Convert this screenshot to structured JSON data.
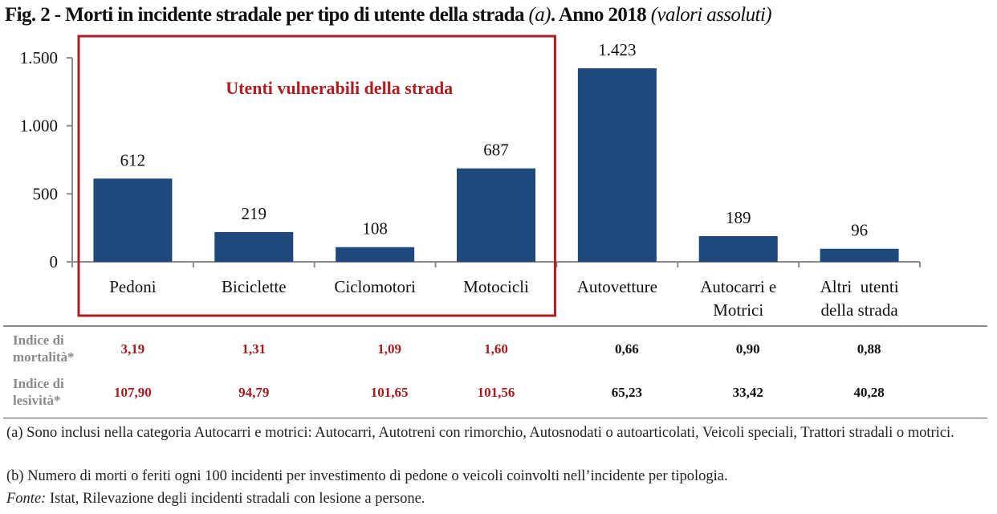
{
  "title": {
    "main": "Fig. 2 - Morti in incidente stradale per tipo di utente della strada ",
    "note_ref": "(a)",
    "sep": ". ",
    "year": "Anno 2018 ",
    "unit": "(valori assoluti)"
  },
  "chart_data": {
    "type": "bar",
    "title": "Fig. 2 - Morti in incidente stradale per tipo di utente della strada (a). Anno 2018 (valori assoluti)",
    "xlabel": "",
    "ylabel": "",
    "ylim": [
      0,
      1500
    ],
    "yticks": [
      0,
      500,
      1000,
      1500
    ],
    "ytick_labels": [
      "0",
      "500",
      "1.000",
      "1.500"
    ],
    "grid": false,
    "categories": [
      [
        "Pedoni"
      ],
      [
        "Biciclette"
      ],
      [
        "Ciclomotori"
      ],
      [
        "Motocicli"
      ],
      [
        "Autovetture"
      ],
      [
        "Autocarri e",
        "Motrici"
      ],
      [
        "Altri  utenti",
        "della strada"
      ]
    ],
    "values": [
      612,
      219,
      108,
      687,
      1423,
      189,
      96
    ],
    "value_labels": [
      "612",
      "219",
      "108",
      "687",
      "1.423",
      "189",
      "96"
    ],
    "bar_color": "#1f497d",
    "annotation": {
      "text": "Utenti vulnerabili della strada",
      "color": "#b01c20",
      "covers_categories": [
        0,
        1,
        2,
        3
      ]
    }
  },
  "indices": {
    "highlight_color": "#a51b1f",
    "normal_color": "#111111",
    "rows": [
      {
        "label": [
          "Indice di",
          "mortalità*"
        ],
        "values": [
          "3,19",
          "1,31",
          "1,09",
          "1,60",
          "0,66",
          "0,90",
          "0,88"
        ]
      },
      {
        "label": [
          "Indice di",
          "lesività*"
        ],
        "values": [
          "107,90",
          "94,79",
          "101,65",
          "101,56",
          "65,23",
          "33,42",
          "40,28"
        ]
      }
    ]
  },
  "notes": {
    "a": "(a)  Sono inclusi nella categoria Autocarri e motrici: Autocarri, Autotreni con rimorchio, Autosnodati o autoarticolati, Veicoli speciali, Trattori stradali o motrici.",
    "b": "(b) Numero di morti o feriti ogni 100 incidenti per investimento di pedone o veicoli coinvolti nell’incidente per tipologia.",
    "source_label": "Fonte:",
    "source_text": " Istat, Rilevazione degli incidenti stradali con lesione a persone."
  }
}
